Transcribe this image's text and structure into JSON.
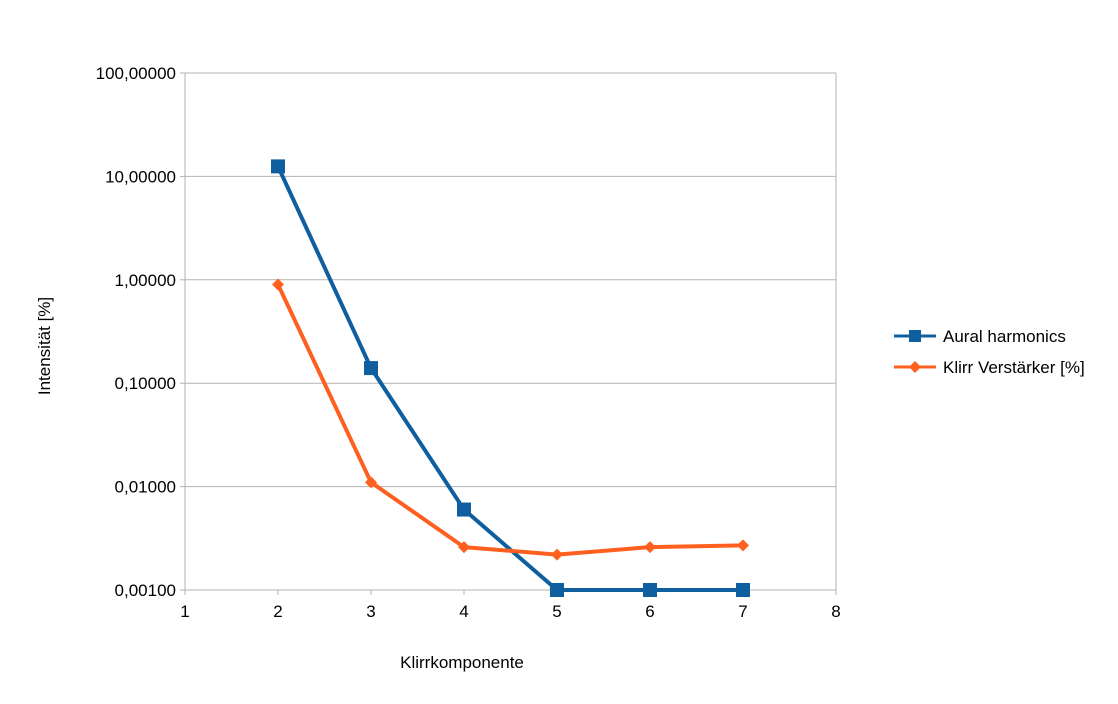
{
  "chart_data": {
    "type": "scatter",
    "title": "",
    "xlabel": "Klirrkomponente",
    "ylabel": "Intensität [%]",
    "xlim": [
      1,
      8
    ],
    "ylim": [
      0.001,
      100
    ],
    "yscale": "log",
    "grid": "horizontal",
    "legend_position": "right",
    "x_ticks": [
      "1",
      "2",
      "3",
      "4",
      "5",
      "6",
      "7",
      "8"
    ],
    "y_ticks": [
      {
        "value": 100,
        "label": "100,00000"
      },
      {
        "value": 10,
        "label": "10,00000"
      },
      {
        "value": 1,
        "label": "1,00000"
      },
      {
        "value": 0.1,
        "label": "0,10000"
      },
      {
        "value": 0.01,
        "label": "0,01000"
      },
      {
        "value": 0.001,
        "label": "0,00100"
      }
    ],
    "series": [
      {
        "name": "Aural harmonics",
        "color": "#0f5fa0",
        "marker": "square",
        "points": [
          {
            "x": 2,
            "y": 12.5
          },
          {
            "x": 3,
            "y": 0.14
          },
          {
            "x": 4,
            "y": 0.006
          },
          {
            "x": 5,
            "y": 0.001
          },
          {
            "x": 6,
            "y": 0.001
          },
          {
            "x": 7,
            "y": 0.001
          }
        ]
      },
      {
        "name": "Klirr Verstärker [%]",
        "color": "#ff6020",
        "marker": "diamond",
        "points": [
          {
            "x": 2,
            "y": 0.9
          },
          {
            "x": 3,
            "y": 0.011
          },
          {
            "x": 4,
            "y": 0.0026
          },
          {
            "x": 5,
            "y": 0.0022
          },
          {
            "x": 6,
            "y": 0.0026
          },
          {
            "x": 7,
            "y": 0.0027
          }
        ]
      }
    ]
  }
}
